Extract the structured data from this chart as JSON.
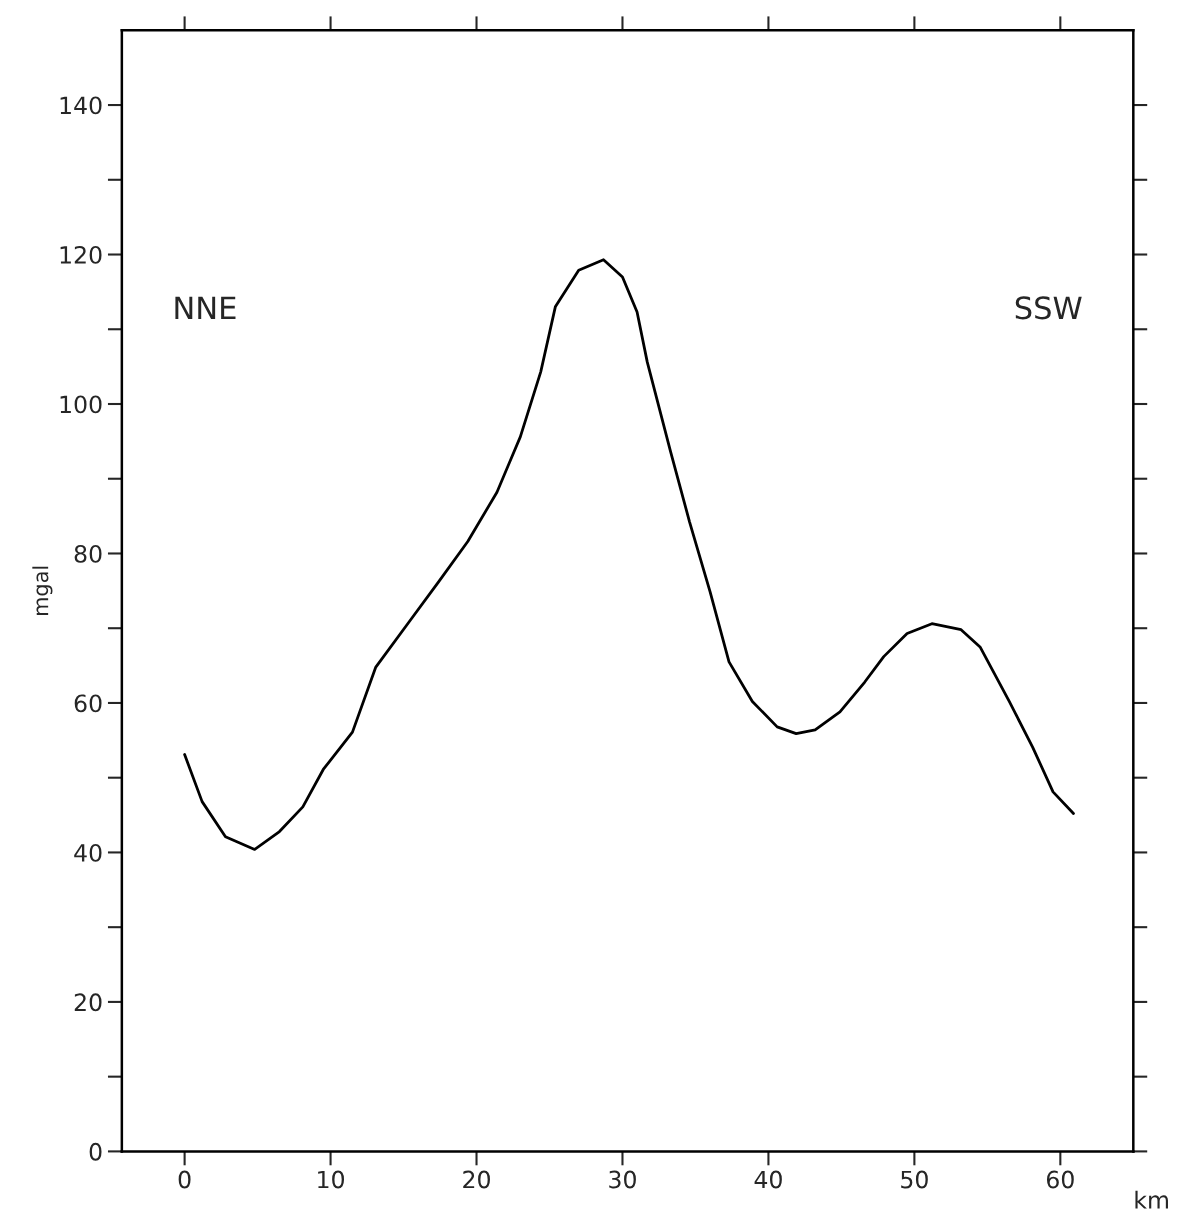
{
  "chart_data": {
    "type": "line",
    "ylabel": "mgal",
    "xlabel": "km",
    "annotations": [
      "NNE",
      "SSW"
    ],
    "x": [
      0,
      1.2,
      2.8,
      4.8,
      6.5,
      8.1,
      9.5,
      11.5,
      13.1,
      15.4,
      17.4,
      19.4,
      21.4,
      23.0,
      24.4,
      25.4,
      27.0,
      28.7,
      30.0,
      31.0,
      31.7,
      33.3,
      34.6,
      36.0,
      37.3,
      38.9,
      40.6,
      41.9,
      43.2,
      44.9,
      46.6,
      47.9,
      49.5,
      51.2,
      53.2,
      54.5,
      56.5,
      58.1,
      59.5,
      60.9
    ],
    "series": [
      {
        "color": "#000000",
        "values": [
          53.1,
          46.8,
          42.1,
          40.4,
          42.8,
          46.1,
          51.1,
          56.1,
          64.8,
          70.9,
          76.2,
          81.6,
          88.2,
          95.6,
          104.3,
          113.0,
          117.9,
          119.3,
          117.0,
          112.3,
          105.6,
          93.6,
          84.2,
          74.9,
          65.5,
          60.2,
          56.8,
          55.9,
          56.4,
          58.8,
          62.8,
          66.2,
          69.3,
          70.6,
          69.8,
          67.5,
          60.2,
          54.1,
          48.1,
          45.2
        ]
      }
    ],
    "xlim": [
      -4.3,
      65
    ],
    "ylim": [
      0,
      150
    ],
    "xticks": [
      0,
      10,
      20,
      30,
      40,
      50,
      60
    ],
    "yticks": [
      0,
      {
        "value": 10,
        "label": null
      },
      20,
      {
        "value": 30,
        "label": null
      },
      40,
      {
        "value": 50,
        "label": null
      },
      60,
      {
        "value": 70,
        "label": null
      },
      80,
      {
        "value": 90,
        "label": null
      },
      100,
      {
        "value": 110,
        "label": null
      },
      120,
      {
        "value": 130,
        "label": null
      },
      140
    ],
    "grid": false,
    "legend": false,
    "marker": "none",
    "line_style": "solid"
  }
}
